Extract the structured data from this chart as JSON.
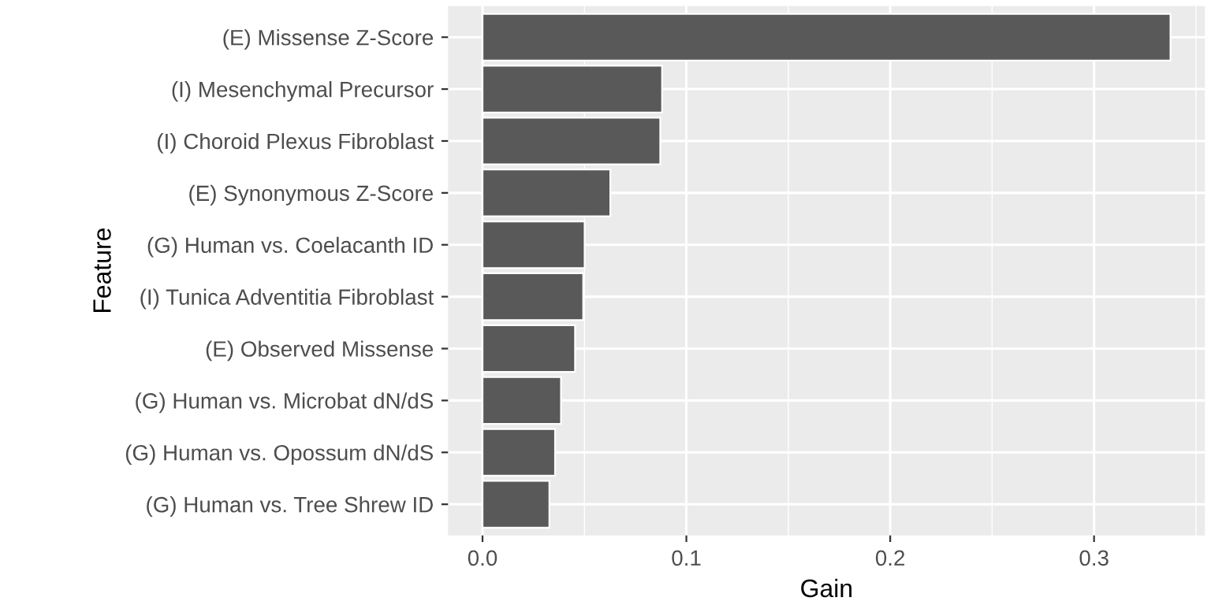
{
  "chart_data": {
    "type": "bar",
    "orientation": "horizontal",
    "xlabel": "Gain",
    "ylabel": "Feature",
    "categories": [
      "(E) Missense Z-Score",
      "(I) Mesenchymal Precursor",
      "(I) Choroid Plexus Fibroblast",
      "(E) Synonymous Z-Score",
      "(G) Human vs. Coelacanth ID",
      "(I) Tunica Adventitia Fibroblast",
      "(E) Observed Missense",
      "(G) Human vs. Microbat dN/dS",
      "(G) Human vs. Opossum dN/dS",
      "(G) Human vs. Tree Shrew ID"
    ],
    "values": [
      0.3375,
      0.0881,
      0.0872,
      0.0627,
      0.0501,
      0.0494,
      0.0454,
      0.0385,
      0.0356,
      0.0328
    ],
    "color": "#595959",
    "xlim": [
      -0.0169,
      0.3544
    ],
    "xticks": [
      {
        "value": 0,
        "label": "0.0"
      },
      0.1,
      0.2,
      0.3
    ],
    "grid": true,
    "legend": false
  }
}
